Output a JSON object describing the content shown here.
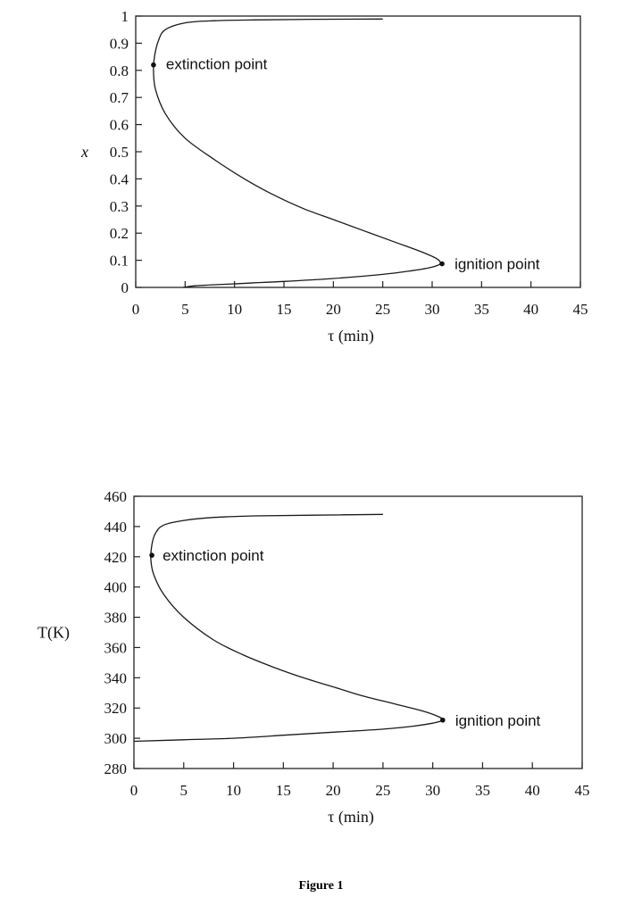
{
  "caption": "Figure 1",
  "chart_data": [
    {
      "type": "line",
      "xlabel": "τ (min)",
      "ylabel": "x",
      "xlim": [
        0,
        45
      ],
      "ylim": [
        0,
        1
      ],
      "x_ticks": [
        "0",
        "5",
        "10",
        "15",
        "20",
        "25",
        "30",
        "35",
        "40",
        "45"
      ],
      "y_ticks": [
        "0",
        "0.1",
        "0.2",
        "0.3",
        "0.4",
        "0.5",
        "0.6",
        "0.7",
        "0.8",
        "0.9",
        "1"
      ],
      "grid": false,
      "series": [
        {
          "x": [
            4.8,
            6,
            8,
            10,
            12,
            15,
            20,
            25,
            28,
            30,
            30.8,
            30.5,
            29,
            26,
            23,
            20,
            17,
            14,
            11,
            8,
            5,
            3,
            2,
            1.8,
            1.9,
            2.3,
            3,
            5,
            8,
            12,
            18,
            25
          ],
          "y": [
            0.0,
            0.006,
            0.01,
            0.013,
            0.017,
            0.022,
            0.033,
            0.048,
            0.062,
            0.075,
            0.087,
            0.105,
            0.13,
            0.17,
            0.21,
            0.25,
            0.29,
            0.34,
            0.4,
            0.47,
            0.55,
            0.64,
            0.73,
            0.8,
            0.85,
            0.91,
            0.95,
            0.975,
            0.983,
            0.986,
            0.988,
            0.989
          ]
        }
      ],
      "points": [
        {
          "label": "extinction point",
          "x": 1.8,
          "y": 0.82
        },
        {
          "label": "ignition point",
          "x": 31,
          "y": 0.087
        }
      ]
    },
    {
      "type": "line",
      "xlabel": "τ (min)",
      "ylabel": "T(K)",
      "xlim": [
        0,
        45
      ],
      "ylim": [
        280,
        460
      ],
      "x_ticks": [
        "0",
        "5",
        "10",
        "15",
        "20",
        "25",
        "30",
        "35",
        "40",
        "45"
      ],
      "y_ticks": [
        "280",
        "300",
        "320",
        "340",
        "360",
        "380",
        "400",
        "420",
        "440",
        "460"
      ],
      "grid": false,
      "series": [
        {
          "x": [
            0,
            5,
            10,
            15,
            20,
            25,
            28,
            30,
            31,
            30.5,
            29,
            26,
            23,
            20,
            17,
            14,
            11,
            8,
            5,
            3,
            2,
            1.7,
            1.8,
            2.2,
            3,
            5,
            8,
            12,
            18,
            25
          ],
          "y": [
            298,
            299,
            300,
            302,
            304,
            306,
            308,
            310,
            312,
            314.5,
            318,
            323,
            328,
            334,
            340,
            347,
            355,
            365,
            380,
            395,
            408,
            418,
            428,
            436,
            441,
            444,
            446,
            447,
            447.5,
            448
          ]
        }
      ],
      "points": [
        {
          "label": "extinction point",
          "x": 1.8,
          "y": 421
        },
        {
          "label": "ignition point",
          "x": 31,
          "y": 312
        }
      ]
    }
  ]
}
